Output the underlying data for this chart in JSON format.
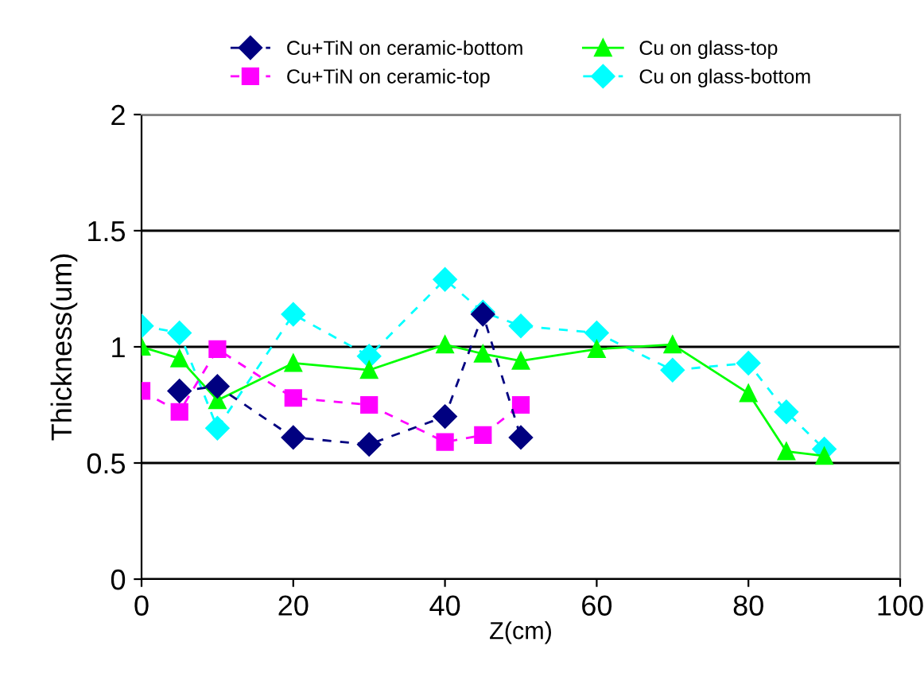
{
  "chart_data": {
    "type": "line",
    "xlabel": "Z(cm)",
    "ylabel": "Thickness(um)",
    "xlim": [
      0,
      100
    ],
    "xticks": [
      0,
      20,
      40,
      60,
      80,
      100
    ],
    "ylim": [
      0,
      2
    ],
    "yticks": [
      0,
      0.5,
      1,
      1.5,
      2
    ],
    "grid": "y",
    "legend": "top",
    "series": [
      {
        "name": "Cu+TiN on ceramic-bottom",
        "color": "#000080",
        "marker": "diamond",
        "line_style": "dashed",
        "x": [
          5,
          10,
          20,
          30,
          40,
          45,
          50
        ],
        "values": [
          0.81,
          0.83,
          0.61,
          0.58,
          0.7,
          1.14,
          0.61
        ]
      },
      {
        "name": "Cu+TiN on ceramic-top",
        "color": "#ff00ff",
        "marker": "square",
        "line_style": "dashed",
        "x": [
          0,
          5,
          10,
          20,
          30,
          40,
          45,
          50
        ],
        "values": [
          0.81,
          0.72,
          0.99,
          0.78,
          0.75,
          0.59,
          0.62,
          0.75
        ]
      },
      {
        "name": "Cu on glass-top",
        "color": "#00ff00",
        "marker": "triangle",
        "line_style": "solid",
        "x": [
          0,
          5,
          10,
          20,
          30,
          40,
          45,
          50,
          60,
          70,
          80,
          85,
          90
        ],
        "values": [
          1.0,
          0.95,
          0.77,
          0.93,
          0.9,
          1.01,
          0.97,
          0.94,
          0.99,
          1.01,
          0.8,
          0.55,
          0.53
        ]
      },
      {
        "name": "Cu on glass-bottom",
        "color": "#00ffff",
        "marker": "diamond",
        "line_style": "dashed",
        "x": [
          0,
          5,
          10,
          20,
          30,
          40,
          45,
          50,
          60,
          70,
          80,
          85,
          90
        ],
        "values": [
          1.09,
          1.06,
          0.65,
          1.14,
          0.96,
          1.29,
          1.15,
          1.09,
          1.06,
          0.9,
          0.93,
          0.72,
          0.56
        ]
      }
    ]
  }
}
